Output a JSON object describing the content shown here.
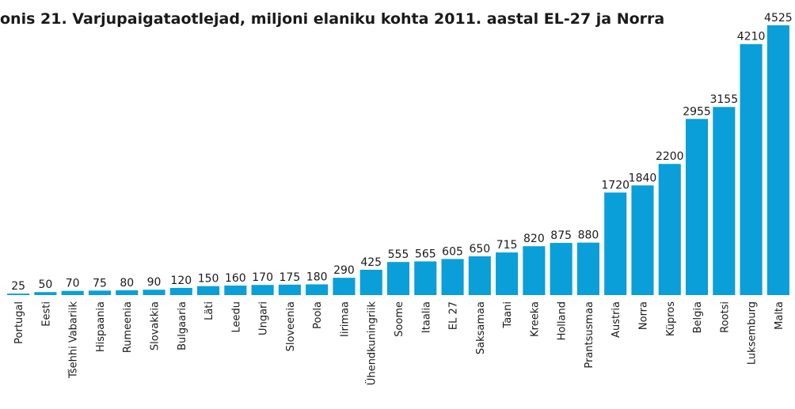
{
  "chart_data": {
    "type": "bar",
    "title": "onis 21. Varjupaigataotlejad, miljoni elaniku kohta 2011. aastal EL-27 ja Norra",
    "categories": [
      "Portugal",
      "Eesti",
      "Tšehhi Vabariik",
      "Hispaania",
      "Rumeenia",
      "Slovakkia",
      "Bulgaaria",
      "Läti",
      "Leedu",
      "Ungari",
      "Sloveenia",
      "Poola",
      "Iirimaa",
      "Ühendkuningriik",
      "Soome",
      "Itaalia",
      "EL 27",
      "Saksamaa",
      "Taani",
      "Kreeka",
      "Holland",
      "Prantsusmaa",
      "Austria",
      "Norra",
      "Küpros",
      "Belgia",
      "Rootsi",
      "Luksemburg",
      "Malta"
    ],
    "values": [
      25,
      50,
      70,
      75,
      80,
      90,
      120,
      150,
      160,
      170,
      175,
      180,
      290,
      425,
      555,
      565,
      605,
      650,
      715,
      820,
      875,
      880,
      1720,
      1840,
      2200,
      2955,
      3155,
      4210,
      4525
    ],
    "color": "#0a9fd8"
  }
}
